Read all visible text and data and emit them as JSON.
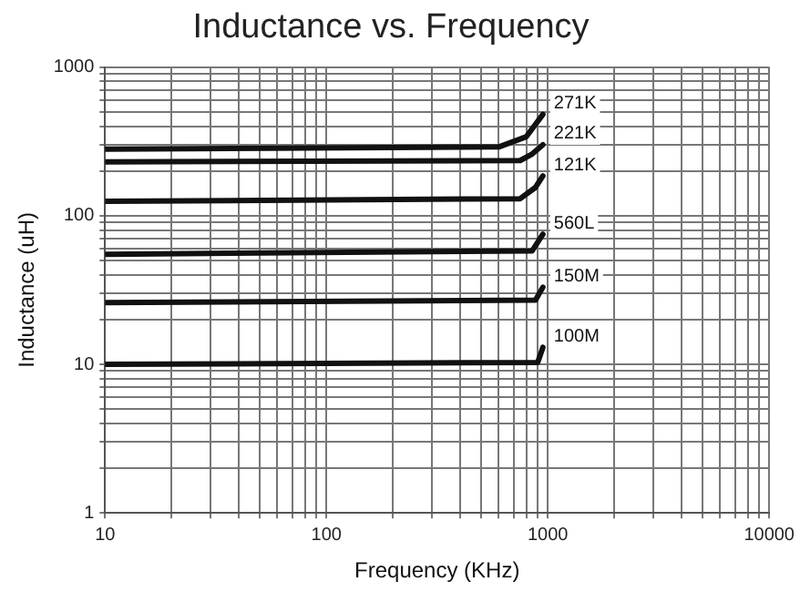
{
  "chart_data": {
    "type": "line",
    "title": "Inductance vs. Frequency",
    "xlabel": "Frequency (KHz)",
    "ylabel": "Inductance (uH)",
    "log": "xy",
    "grid": true,
    "legend": false,
    "marker": "none",
    "line_style": "solid",
    "xlim": [
      10,
      10000
    ],
    "ylim": [
      1,
      1000
    ],
    "xticks": [
      10,
      {
        "value": 20,
        "label": null
      },
      {
        "value": 30,
        "label": null
      },
      {
        "value": 40,
        "label": null
      },
      {
        "value": 50,
        "label": null
      },
      {
        "value": 60,
        "label": null
      },
      {
        "value": 70,
        "label": null
      },
      {
        "value": 80,
        "label": null
      },
      {
        "value": 90,
        "label": null
      },
      100,
      {
        "value": 200,
        "label": null
      },
      {
        "value": 300,
        "label": null
      },
      {
        "value": 400,
        "label": null
      },
      {
        "value": 500,
        "label": null
      },
      {
        "value": 600,
        "label": null
      },
      {
        "value": 700,
        "label": null
      },
      {
        "value": 800,
        "label": null
      },
      {
        "value": 900,
        "label": null
      },
      1000,
      {
        "value": 2000,
        "label": null
      },
      {
        "value": 3000,
        "label": null
      },
      {
        "value": 4000,
        "label": null
      },
      {
        "value": 5000,
        "label": null
      },
      {
        "value": 6000,
        "label": null
      },
      {
        "value": 7000,
        "label": null
      },
      {
        "value": 8000,
        "label": null
      },
      {
        "value": 9000,
        "label": null
      },
      10000
    ],
    "yticks": [
      1,
      {
        "value": 2,
        "label": null
      },
      {
        "value": 3,
        "label": null
      },
      {
        "value": 4,
        "label": null
      },
      {
        "value": 5,
        "label": null
      },
      {
        "value": 6,
        "label": null
      },
      {
        "value": 7,
        "label": null
      },
      {
        "value": 8,
        "label": null
      },
      {
        "value": 9,
        "label": null
      },
      10,
      {
        "value": 20,
        "label": null
      },
      {
        "value": 30,
        "label": null
      },
      {
        "value": 40,
        "label": null
      },
      {
        "value": 50,
        "label": null
      },
      {
        "value": 60,
        "label": null
      },
      {
        "value": 70,
        "label": null
      },
      {
        "value": 80,
        "label": null
      },
      {
        "value": 90,
        "label": null
      },
      100,
      {
        "value": 200,
        "label": null
      },
      {
        "value": 300,
        "label": null
      },
      {
        "value": 400,
        "label": null
      },
      {
        "value": 500,
        "label": null
      },
      {
        "value": 600,
        "label": null
      },
      {
        "value": 700,
        "label": null
      },
      {
        "value": 800,
        "label": null
      },
      {
        "value": 900,
        "label": null
      },
      1000
    ],
    "series": [
      {
        "name": "271K",
        "color": "#111111",
        "x": [
          10,
          600,
          800,
          950
        ],
        "values": [
          280,
          290,
          340,
          480
        ]
      },
      {
        "name": "221K",
        "color": "#111111",
        "x": [
          10,
          750,
          850,
          950
        ],
        "values": [
          230,
          235,
          260,
          300
        ]
      },
      {
        "name": "121K",
        "color": "#111111",
        "x": [
          10,
          750,
          880,
          950
        ],
        "values": [
          125,
          130,
          155,
          185
        ]
      },
      {
        "name": "560L",
        "color": "#111111",
        "x": [
          10,
          850,
          950
        ],
        "values": [
          55,
          58,
          75
        ]
      },
      {
        "name": "150M",
        "color": "#111111",
        "x": [
          10,
          880,
          950
        ],
        "values": [
          26,
          27,
          33
        ]
      },
      {
        "name": "100M",
        "color": "#111111",
        "x": [
          10,
          900,
          950
        ],
        "values": [
          10,
          10.3,
          13
        ]
      }
    ]
  }
}
